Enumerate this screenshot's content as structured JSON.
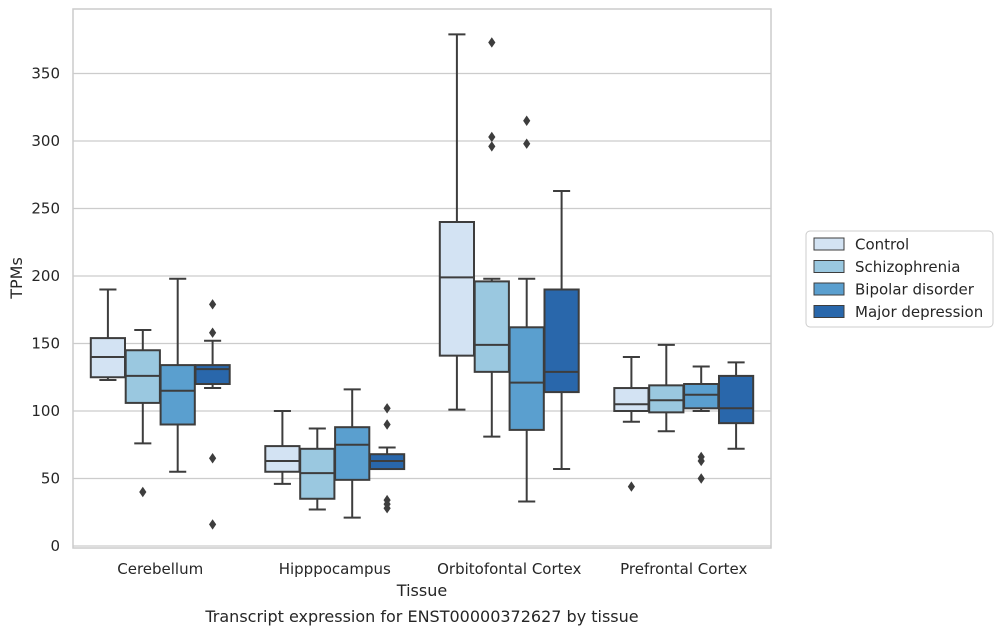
{
  "caption": "Transcript expression for ENST00000372627 by tissue",
  "chart_data": {
    "type": "box",
    "xlabel": "Tissue",
    "ylabel": "TPMs",
    "ylim": [
      -2,
      396
    ],
    "yticks": [
      0,
      50,
      100,
      150,
      200,
      250,
      300,
      350
    ],
    "grid": true,
    "legend_position": "right",
    "categories": [
      "Cerebellum",
      "Hipppocampus",
      "Orbitofontal Cortex",
      "Prefrontal Cortex"
    ],
    "series": [
      {
        "name": "Control",
        "color": "#d3e3f3",
        "boxes": [
          {
            "whisker_low": 123,
            "q1": 125,
            "median": 140,
            "q3": 154,
            "whisker_high": 190,
            "outliers": []
          },
          {
            "whisker_low": 46,
            "q1": 55,
            "median": 63,
            "q3": 74,
            "whisker_high": 100,
            "outliers": []
          },
          {
            "whisker_low": 101,
            "q1": 141,
            "median": 199,
            "q3": 240,
            "whisker_high": 379,
            "outliers": []
          },
          {
            "whisker_low": 92,
            "q1": 100,
            "median": 105,
            "q3": 117,
            "whisker_high": 140,
            "outliers": [
              44
            ]
          }
        ]
      },
      {
        "name": "Schizophrenia",
        "color": "#9ac8e0",
        "boxes": [
          {
            "whisker_low": 76,
            "q1": 106,
            "median": 126,
            "q3": 145,
            "whisker_high": 160,
            "outliers": [
              40
            ]
          },
          {
            "whisker_low": 27,
            "q1": 35,
            "median": 54,
            "q3": 72,
            "whisker_high": 87,
            "outliers": []
          },
          {
            "whisker_low": 81,
            "q1": 129,
            "median": 149,
            "q3": 196,
            "whisker_high": 198,
            "outliers": [
              373,
              303,
              296
            ]
          },
          {
            "whisker_low": 85,
            "q1": 99,
            "median": 108,
            "q3": 119,
            "whisker_high": 149,
            "outliers": []
          }
        ]
      },
      {
        "name": "Bipolar disorder",
        "color": "#5a9fcf",
        "boxes": [
          {
            "whisker_low": 55,
            "q1": 90,
            "median": 115,
            "q3": 134,
            "whisker_high": 198,
            "outliers": []
          },
          {
            "whisker_low": 21,
            "q1": 49,
            "median": 75,
            "q3": 88,
            "whisker_high": 116,
            "outliers": []
          },
          {
            "whisker_low": 33,
            "q1": 86,
            "median": 121,
            "q3": 162,
            "whisker_high": 198,
            "outliers": [
              315,
              298
            ]
          },
          {
            "whisker_low": 100,
            "q1": 102,
            "median": 112,
            "q3": 120,
            "whisker_high": 133,
            "outliers": [
              66,
              63,
              50
            ]
          }
        ]
      },
      {
        "name": "Major depression",
        "color": "#2967ab",
        "boxes": [
          {
            "whisker_low": 117,
            "q1": 120,
            "median": 131,
            "q3": 134,
            "whisker_high": 152,
            "outliers": [
              179,
              158,
              65,
              16
            ]
          },
          {
            "whisker_low": 57,
            "q1": 57,
            "median": 63,
            "q3": 68,
            "whisker_high": 73,
            "outliers": [
              102,
              90,
              34,
              31,
              28
            ]
          },
          {
            "whisker_low": 57,
            "q1": 114,
            "median": 129,
            "q3": 190,
            "whisker_high": 263,
            "outliers": []
          },
          {
            "whisker_low": 72,
            "q1": 91,
            "median": 102,
            "q3": 126,
            "whisker_high": 136,
            "outliers": []
          }
        ]
      }
    ]
  }
}
